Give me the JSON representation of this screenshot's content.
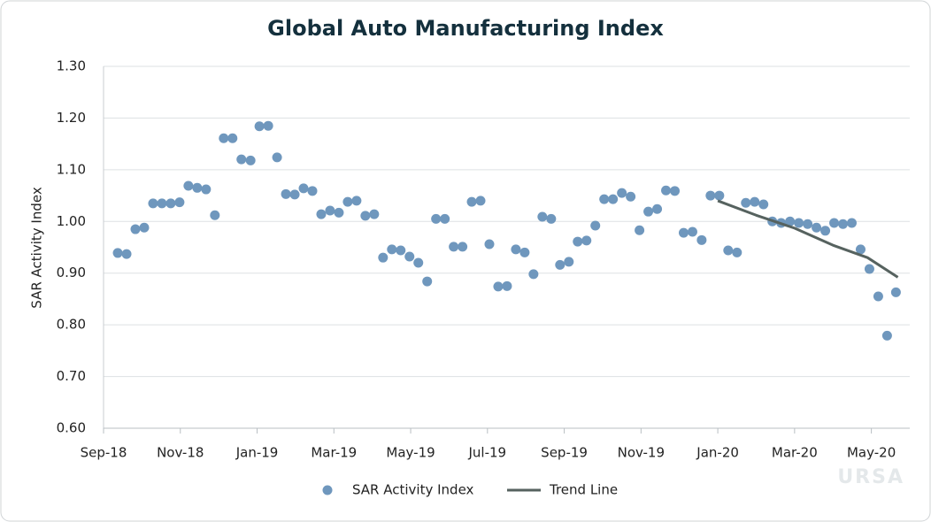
{
  "chart_data": {
    "type": "scatter",
    "title": "Global Auto Manufacturing Index",
    "y_label": "SAR Activity Index",
    "watermark": "URSA",
    "xlim": [
      0,
      21
    ],
    "xticks": [
      {
        "value": 0,
        "label": "Sep-18"
      },
      {
        "value": 2,
        "label": "Nov-18"
      },
      {
        "value": 4,
        "label": "Jan-19"
      },
      {
        "value": 6,
        "label": "Mar-19"
      },
      {
        "value": 8,
        "label": "May-19"
      },
      {
        "value": 10,
        "label": "Jul-19"
      },
      {
        "value": 12,
        "label": "Sep-19"
      },
      {
        "value": 14,
        "label": "Nov-19"
      },
      {
        "value": 16,
        "label": "Jan-20"
      },
      {
        "value": 18,
        "label": "Mar-20"
      },
      {
        "value": 20,
        "label": "May-20"
      }
    ],
    "ylim": [
      0.6,
      1.3
    ],
    "yticks": [
      {
        "value": 0.6,
        "label": "0.60"
      },
      {
        "value": 0.7,
        "label": "0.70"
      },
      {
        "value": 0.8,
        "label": "0.80"
      },
      {
        "value": 0.9,
        "label": "0.90"
      },
      {
        "value": 1.0,
        "label": "1.00"
      },
      {
        "value": 1.1,
        "label": "1.10"
      },
      {
        "value": 1.2,
        "label": "1.20"
      },
      {
        "value": 1.3,
        "label": "1.30"
      }
    ],
    "grid": true,
    "legend": "bottom",
    "series": [
      {
        "name": "SAR Activity Index",
        "mark": "point",
        "color": "#6f97bd",
        "x": [
          0.37,
          0.6,
          0.83,
          1.06,
          1.29,
          1.52,
          1.75,
          1.98,
          2.21,
          2.44,
          2.67,
          2.9,
          3.13,
          3.36,
          3.59,
          3.83,
          4.06,
          4.29,
          4.52,
          4.75,
          4.98,
          5.21,
          5.44,
          5.67,
          5.9,
          6.13,
          6.36,
          6.59,
          6.82,
          7.05,
          7.28,
          7.51,
          7.74,
          7.97,
          8.2,
          8.43,
          8.66,
          8.89,
          9.12,
          9.35,
          9.59,
          9.82,
          10.05,
          10.28,
          10.51,
          10.74,
          10.97,
          11.2,
          11.43,
          11.66,
          11.89,
          12.12,
          12.35,
          12.58,
          12.81,
          13.04,
          13.27,
          13.5,
          13.73,
          13.96,
          14.19,
          14.42,
          14.65,
          14.88,
          15.11,
          15.34,
          15.58,
          15.81,
          16.04,
          16.27,
          16.5,
          16.73,
          16.96,
          17.19,
          17.42,
          17.65,
          17.88,
          18.11,
          18.34,
          18.57,
          18.8,
          19.03,
          19.26,
          19.49,
          19.72,
          19.95,
          20.18,
          20.41,
          20.64
        ],
        "values": [
          0.939,
          0.937,
          0.985,
          0.988,
          1.035,
          1.035,
          1.035,
          1.037,
          1.069,
          1.065,
          1.062,
          1.012,
          1.161,
          1.161,
          1.12,
          1.118,
          1.184,
          1.185,
          1.124,
          1.053,
          1.052,
          1.064,
          1.059,
          1.014,
          1.021,
          1.017,
          1.038,
          1.04,
          1.011,
          1.014,
          0.93,
          0.946,
          0.944,
          0.932,
          0.92,
          0.884,
          1.005,
          1.005,
          0.951,
          0.951,
          1.038,
          1.04,
          0.956,
          0.874,
          0.875,
          0.946,
          0.94,
          0.898,
          1.009,
          1.005,
          0.916,
          0.922,
          0.961,
          0.963,
          0.992,
          1.043,
          1.043,
          1.055,
          1.048,
          0.983,
          1.019,
          1.024,
          1.06,
          1.059,
          0.978,
          0.98,
          0.964,
          1.05,
          1.05,
          0.944,
          0.94,
          1.036,
          1.038,
          1.033,
          1.0,
          0.997,
          1.0,
          0.997,
          0.995,
          0.988,
          0.982,
          0.997,
          0.995,
          0.997,
          0.946,
          0.908,
          0.855,
          0.779,
          0.863
        ]
      },
      {
        "name": "Trend Line",
        "mark": "line",
        "color": "#56625f",
        "x": [
          16.0,
          17.0,
          18.0,
          19.0,
          19.9,
          20.69
        ],
        "values": [
          1.04,
          1.012,
          0.987,
          0.954,
          0.93,
          0.892
        ]
      }
    ]
  }
}
